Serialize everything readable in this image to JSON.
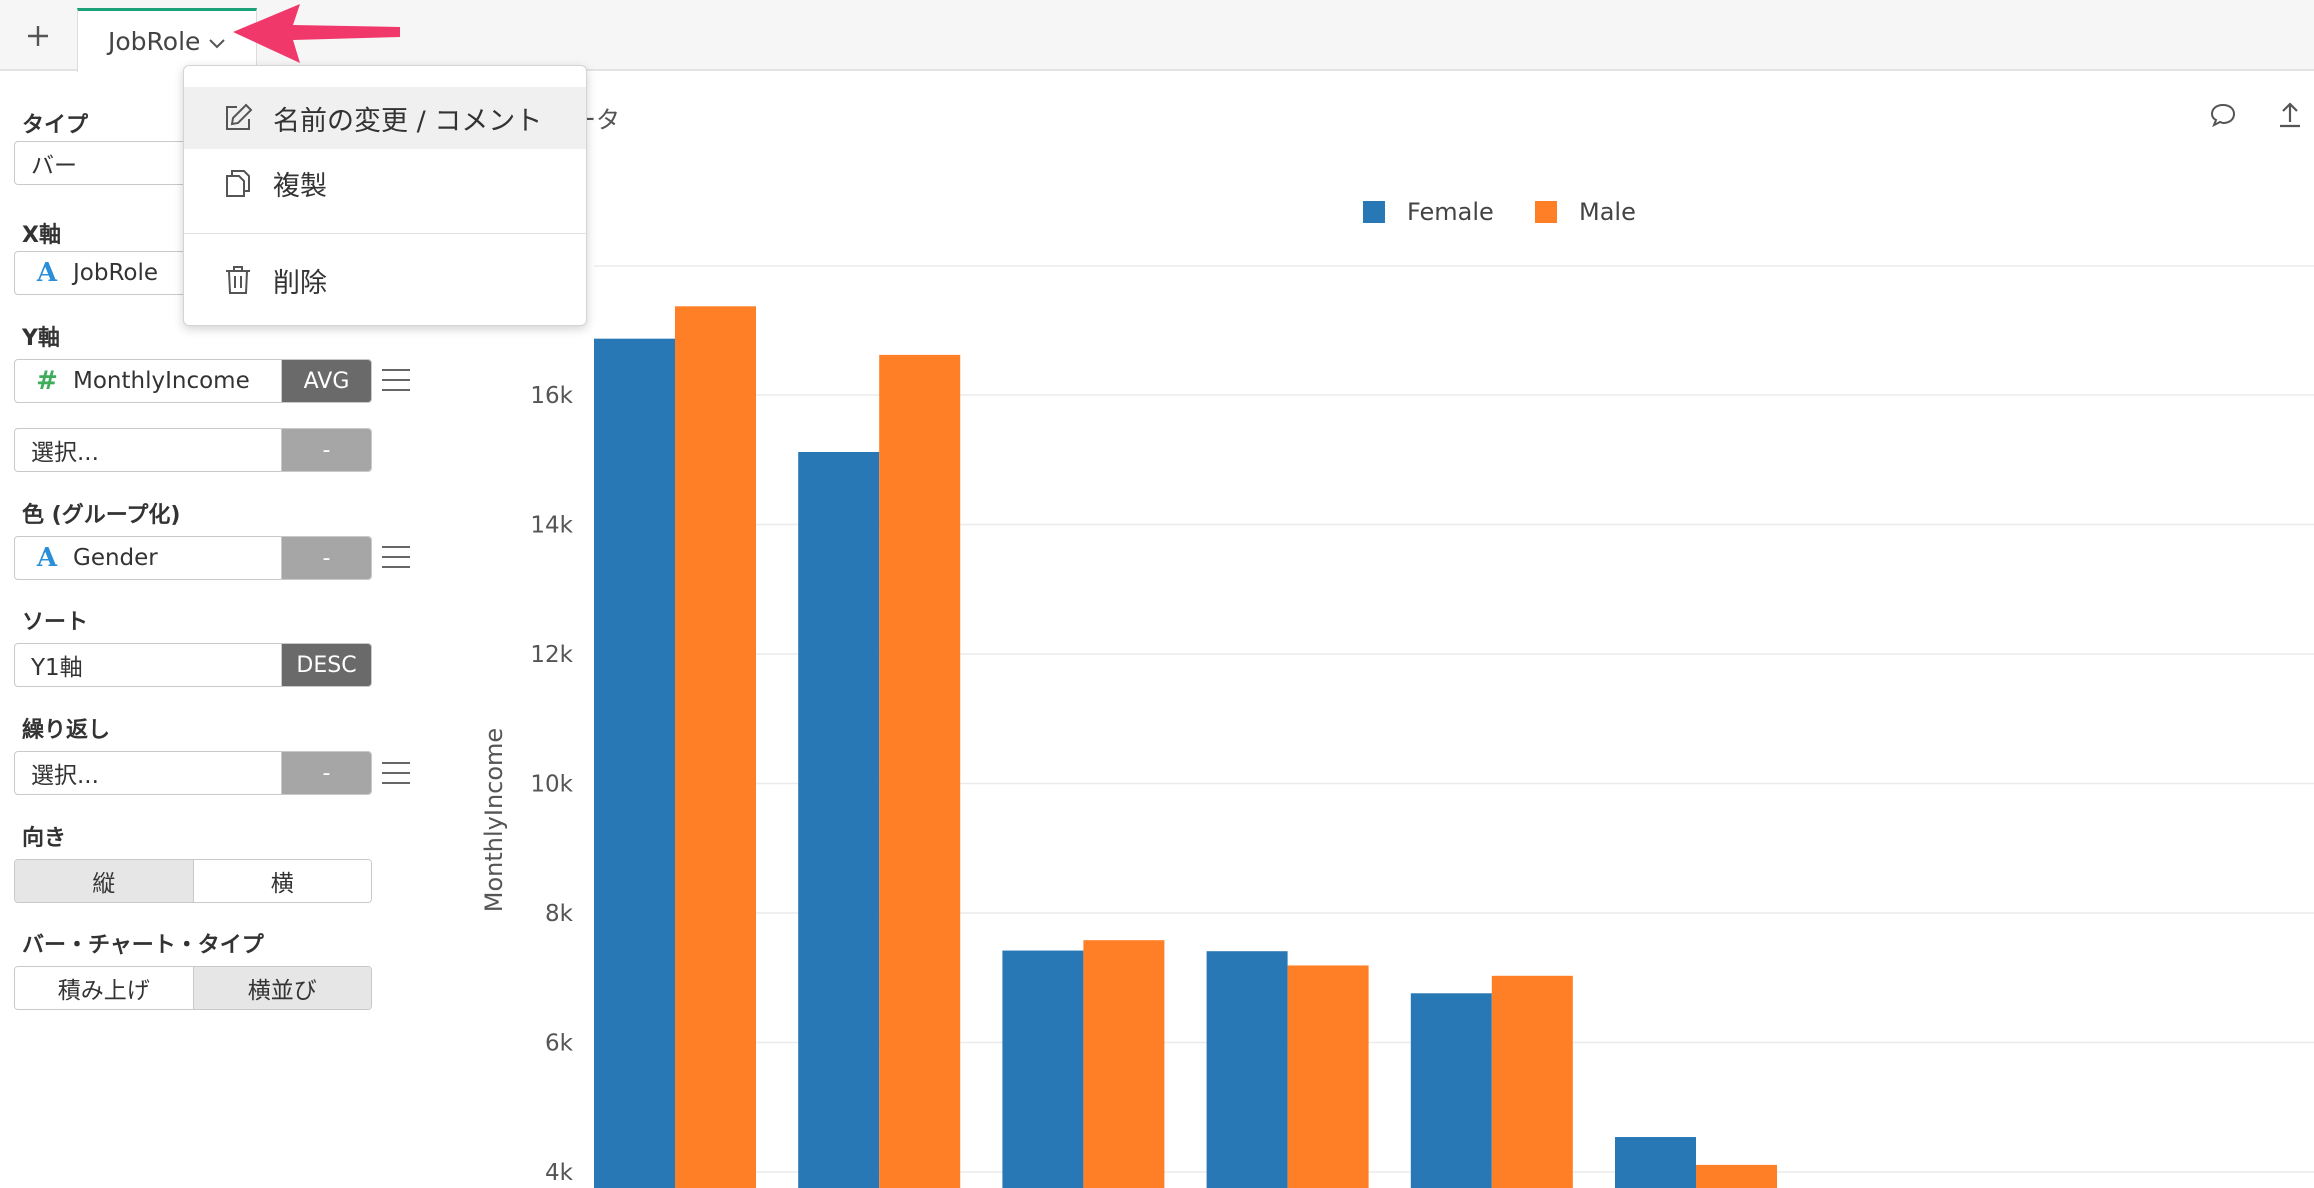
{
  "tabbar": {
    "active_tab": "JobRole"
  },
  "panel": {
    "type_label": "タイプ",
    "type_value": "バー",
    "x_label": "X軸",
    "x_value": "JobRole",
    "y_label": "Y軸",
    "y_value": "MonthlyIncome",
    "y_agg": "AVG",
    "y2_value": "選択...",
    "y2_agg": "-",
    "color_label": "色 (グループ化)",
    "color_value": "Gender",
    "color_agg": "-",
    "sort_label": "ソート",
    "sort_value": "Y1軸",
    "sort_order": "DESC",
    "repeat_label": "繰り返し",
    "repeat_value": "選択...",
    "repeat_agg": "-",
    "orientation_label": "向き",
    "orientation_options": [
      "縦",
      "横"
    ],
    "orientation_selected": "縦",
    "bartype_label": "バー・チャート・タイプ",
    "bartype_options": [
      "積み上げ",
      "横並び"
    ],
    "bartype_selected": "横並び"
  },
  "menu": {
    "items": [
      {
        "label": "名前の変更 / コメント",
        "icon": "edit-icon"
      },
      {
        "label": "複製",
        "icon": "copy-icon"
      },
      {
        "label": "削除",
        "icon": "trash-icon"
      }
    ]
  },
  "chart_header": {
    "title_fragment": "ータ"
  },
  "colors": {
    "female": "#2878b5",
    "male": "#fe7f26",
    "accent": "#1aa17a",
    "arrow": "#f0386b"
  },
  "chart_data": {
    "type": "bar",
    "ylabel": "MonthlyIncome",
    "ylim": [
      3900,
      17000
    ],
    "yticks": [
      4000,
      6000,
      8000,
      10000,
      12000,
      14000,
      16000
    ],
    "ytick_labels": [
      "4k",
      "6k",
      "8k",
      "10k",
      "12k",
      "14k",
      "16k"
    ],
    "legend_position": "top-center",
    "grid": true,
    "series": [
      {
        "name": "Female",
        "values": [
          16870,
          15120,
          7420,
          7410,
          6760,
          4540
        ]
      },
      {
        "name": "Male",
        "values": [
          17370,
          16620,
          7580,
          7190,
          7030,
          4110
        ]
      }
    ]
  }
}
